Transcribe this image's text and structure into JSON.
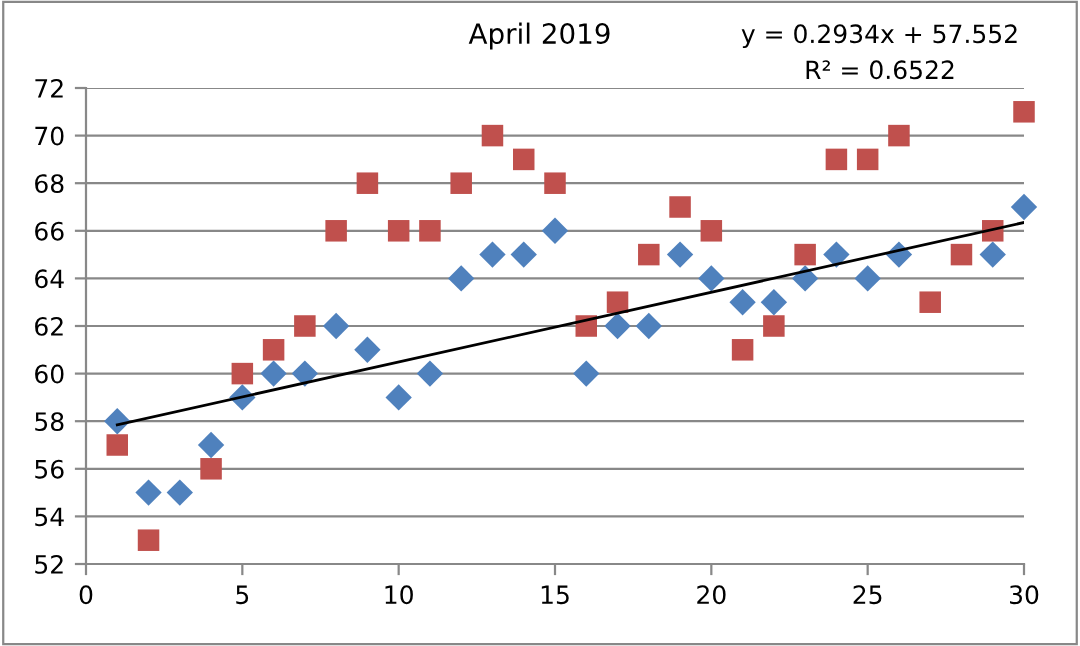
{
  "chart_data": {
    "type": "scatter",
    "title": "April 2019",
    "xlim": [
      0,
      30
    ],
    "xticks": [
      0,
      5,
      10,
      15,
      20,
      25,
      30
    ],
    "ylim": [
      52,
      72
    ],
    "yticks": [
      52,
      54,
      56,
      58,
      60,
      62,
      64,
      66,
      68,
      70,
      72
    ],
    "grid": "y",
    "legend": false,
    "x": [
      1,
      2,
      3,
      4,
      5,
      6,
      7,
      8,
      9,
      10,
      11,
      12,
      13,
      14,
      15,
      16,
      17,
      18,
      19,
      20,
      21,
      22,
      23,
      24,
      25,
      26,
      27,
      28,
      29,
      30
    ],
    "series": [
      {
        "color": "#4f81bd",
        "marker": "diamond",
        "values": [
          58,
          55,
          55,
          57,
          59,
          60,
          60,
          62,
          61,
          59,
          60,
          64,
          65,
          65,
          66,
          60,
          62,
          62,
          65,
          64,
          63,
          63,
          64,
          65,
          64,
          65,
          null,
          null,
          65,
          67
        ]
      },
      {
        "color": "#c0504d",
        "marker": "square",
        "values": [
          57,
          53,
          null,
          56,
          60,
          61,
          62,
          66,
          68,
          66,
          66,
          68,
          70,
          69,
          68,
          62,
          63,
          65,
          67,
          66,
          61,
          62,
          65,
          69,
          69,
          70,
          63,
          65,
          66,
          71
        ]
      },
      {
        "type": "line",
        "color": "#000000",
        "marker": "none",
        "x": [
          1,
          30
        ],
        "values": [
          57.85,
          66.35
        ]
      }
    ],
    "annotations": [
      "y = 0.2934x + 57.552",
      "R² = 0.6522"
    ]
  }
}
